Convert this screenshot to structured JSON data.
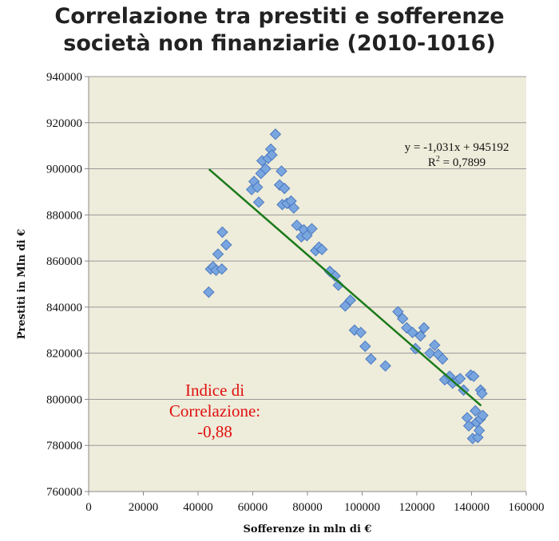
{
  "chart_data": {
    "type": "scatter",
    "title": [
      "Correlazione tra prestiti e sofferenze",
      "società non finanziarie (2010-1016)"
    ],
    "xlabel": "Sofferenze in mln di €",
    "ylabel": "Prestiti in Mln di €",
    "xlim": [
      0,
      160000
    ],
    "ylim": [
      760000,
      940000
    ],
    "xticks": [
      "0",
      "20000",
      "40000",
      "60000",
      "80000",
      "100000",
      "120000",
      "140000",
      "160000"
    ],
    "yticks": [
      "760000",
      "780000",
      "800000",
      "820000",
      "840000",
      "860000",
      "880000",
      "900000",
      "920000",
      "940000"
    ],
    "grid": "horizontal",
    "colors": {
      "plot_bg": "#eeecda",
      "marker": "#7aa6e0",
      "marker_edge": "#4a78bf",
      "trendline": "#1a7a1a",
      "annotation": "#e01010"
    },
    "trendline": {
      "slope": -1.031,
      "intercept": 945192,
      "x_range": [
        44000,
        143500
      ],
      "equation": "y = -1,031x + 945192",
      "r2_label": "R",
      "r2_sup": "2",
      "r2_value": " = 0,7899"
    },
    "annotation": [
      "Indice di",
      "Correlazione:",
      "-0,88"
    ],
    "points": [
      [
        43900,
        846500
      ],
      [
        44600,
        856500
      ],
      [
        45500,
        857500
      ],
      [
        46600,
        856000
      ],
      [
        47300,
        863000
      ],
      [
        48700,
        856500
      ],
      [
        48900,
        872500
      ],
      [
        50300,
        867000
      ],
      [
        59600,
        891000
      ],
      [
        60500,
        894500
      ],
      [
        61700,
        892000
      ],
      [
        62200,
        885500
      ],
      [
        63000,
        898000
      ],
      [
        63400,
        903500
      ],
      [
        64700,
        900000
      ],
      [
        65600,
        904500
      ],
      [
        66600,
        908500
      ],
      [
        67000,
        906000
      ],
      [
        68300,
        915000
      ],
      [
        69800,
        893000
      ],
      [
        70500,
        899000
      ],
      [
        70800,
        884500
      ],
      [
        71600,
        891500
      ],
      [
        72500,
        885000
      ],
      [
        74000,
        886000
      ],
      [
        75000,
        883000
      ],
      [
        76100,
        875500
      ],
      [
        77800,
        870500
      ],
      [
        78700,
        873500
      ],
      [
        79800,
        871000
      ],
      [
        81600,
        874000
      ],
      [
        83000,
        864500
      ],
      [
        84200,
        866000
      ],
      [
        85300,
        865000
      ],
      [
        88200,
        855500
      ],
      [
        90100,
        853500
      ],
      [
        91300,
        849500
      ],
      [
        93800,
        840500
      ],
      [
        95700,
        843000
      ],
      [
        97200,
        830000
      ],
      [
        99500,
        829000
      ],
      [
        101100,
        823000
      ],
      [
        103200,
        817500
      ],
      [
        108500,
        814500
      ],
      [
        113100,
        838000
      ],
      [
        114800,
        835000
      ],
      [
        116300,
        831000
      ],
      [
        118400,
        829000
      ],
      [
        119500,
        822000
      ],
      [
        121300,
        827500
      ],
      [
        122600,
        831000
      ],
      [
        124800,
        820000
      ],
      [
        126500,
        823500
      ],
      [
        127800,
        819500
      ],
      [
        129400,
        817500
      ],
      [
        130200,
        808500
      ],
      [
        132000,
        810000
      ],
      [
        133100,
        807000
      ],
      [
        134700,
        808000
      ],
      [
        135800,
        809000
      ],
      [
        137100,
        804000
      ],
      [
        138400,
        792000
      ],
      [
        139000,
        788500
      ],
      [
        139700,
        810500
      ],
      [
        140400,
        783000
      ],
      [
        140800,
        810000
      ],
      [
        141400,
        795000
      ],
      [
        141800,
        790000
      ],
      [
        142300,
        783500
      ],
      [
        142800,
        786500
      ],
      [
        143200,
        791500
      ],
      [
        143300,
        804000
      ],
      [
        143800,
        802500
      ],
      [
        144100,
        793000
      ]
    ]
  }
}
